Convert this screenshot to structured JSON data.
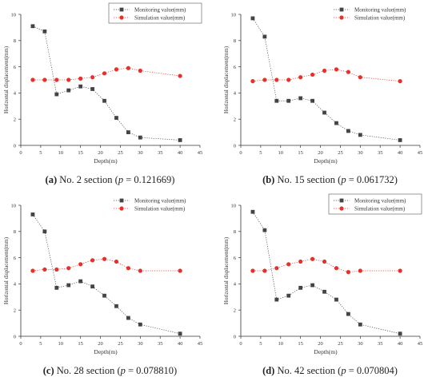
{
  "legend": {
    "monitoring": "Monitoring value(mm)",
    "simulation": "Simulation value(mm)"
  },
  "colors": {
    "monitoring": "#444444",
    "simulation": "#e8302a"
  },
  "chart_data": [
    {
      "type": "line",
      "title": "",
      "xlabel": "Depth(m)",
      "ylabel": "Horizontal displacement(mm)",
      "xlim": [
        0,
        45
      ],
      "ylim": [
        0,
        10
      ],
      "xticks": [
        0,
        5,
        10,
        15,
        20,
        25,
        30,
        35,
        40,
        45
      ],
      "yticks": [
        0,
        2,
        4,
        6,
        8,
        10
      ],
      "legend_position": "top-right",
      "legend_box": true,
      "x": [
        3,
        6,
        9,
        12,
        15,
        18,
        21,
        24,
        27,
        30,
        40
      ],
      "series": [
        {
          "name": "Monitoring value(mm)",
          "values": [
            9.1,
            8.7,
            3.9,
            4.2,
            4.5,
            4.3,
            3.4,
            2.1,
            1.0,
            0.6,
            0.4
          ]
        },
        {
          "name": "Simulation value(mm)",
          "values": [
            5.0,
            5.0,
            5.0,
            5.0,
            5.1,
            5.2,
            5.5,
            5.8,
            5.9,
            5.7,
            5.3
          ]
        }
      ],
      "caption": {
        "label": "(a)",
        "text": " No. 2 section (",
        "p": "p",
        "value": " = 0.121669)"
      }
    },
    {
      "type": "line",
      "title": "",
      "xlabel": "Depth(m)",
      "ylabel": "Horizontal displacement(mm)",
      "xlim": [
        0,
        45
      ],
      "ylim": [
        0,
        10
      ],
      "xticks": [
        0,
        5,
        10,
        15,
        20,
        25,
        30,
        35,
        40,
        45
      ],
      "yticks": [
        0,
        2,
        4,
        6,
        8,
        10
      ],
      "legend_position": "top-right",
      "legend_box": false,
      "x": [
        3,
        6,
        9,
        12,
        15,
        18,
        21,
        24,
        27,
        30,
        40
      ],
      "series": [
        {
          "name": "Monitoring value(mm)",
          "values": [
            9.7,
            8.3,
            3.4,
            3.4,
            3.6,
            3.4,
            2.5,
            1.7,
            1.1,
            0.8,
            0.4
          ]
        },
        {
          "name": "Simulation value(mm)",
          "values": [
            4.9,
            5.0,
            5.0,
            5.0,
            5.2,
            5.4,
            5.7,
            5.8,
            5.6,
            5.2,
            4.9
          ]
        }
      ],
      "caption": {
        "label": "(b)",
        "text": " No. 15 section (",
        "p": "p",
        "value": " = 0.061732)"
      }
    },
    {
      "type": "line",
      "title": "",
      "xlabel": "Depth(m)",
      "ylabel": "Horizontal displacement(mm)",
      "xlim": [
        0,
        45
      ],
      "ylim": [
        0,
        10
      ],
      "xticks": [
        0,
        5,
        10,
        15,
        20,
        25,
        30,
        35,
        40,
        45
      ],
      "yticks": [
        0,
        2,
        4,
        6,
        8,
        10
      ],
      "legend_position": "top-right",
      "legend_box": false,
      "x": [
        3,
        6,
        9,
        12,
        15,
        18,
        21,
        24,
        27,
        30,
        40
      ],
      "series": [
        {
          "name": "Monitoring value(mm)",
          "values": [
            9.3,
            8.0,
            3.7,
            3.9,
            4.2,
            3.8,
            3.1,
            2.3,
            1.4,
            0.9,
            0.2
          ]
        },
        {
          "name": "Simulation value(mm)",
          "values": [
            5.0,
            5.1,
            5.1,
            5.2,
            5.5,
            5.8,
            5.9,
            5.7,
            5.2,
            5.0,
            5.0
          ]
        }
      ],
      "caption": {
        "label": "(c)",
        "text": " No. 28 section (",
        "p": "p",
        "value": " = 0.078810)"
      }
    },
    {
      "type": "line",
      "title": "",
      "xlabel": "Depth(m)",
      "ylabel": "Horizontal displacement(mm)",
      "xlim": [
        0,
        45
      ],
      "ylim": [
        0,
        10
      ],
      "xticks": [
        0,
        5,
        10,
        15,
        20,
        25,
        30,
        35,
        40,
        45
      ],
      "yticks": [
        0,
        2,
        4,
        6,
        8,
        10
      ],
      "legend_position": "top-right",
      "legend_box": true,
      "x": [
        3,
        6,
        9,
        12,
        15,
        18,
        21,
        24,
        27,
        30,
        40
      ],
      "series": [
        {
          "name": "Monitoring value(mm)",
          "values": [
            9.5,
            8.1,
            2.8,
            3.1,
            3.7,
            3.9,
            3.4,
            2.8,
            1.7,
            0.9,
            0.2
          ]
        },
        {
          "name": "Simulation value(mm)",
          "values": [
            5.0,
            5.0,
            5.2,
            5.5,
            5.7,
            5.9,
            5.7,
            5.2,
            4.9,
            5.0,
            5.0
          ]
        }
      ],
      "caption": {
        "label": "(d)",
        "text": " No. 42 section (",
        "p": "p",
        "value": " = 0.070804)"
      }
    }
  ]
}
